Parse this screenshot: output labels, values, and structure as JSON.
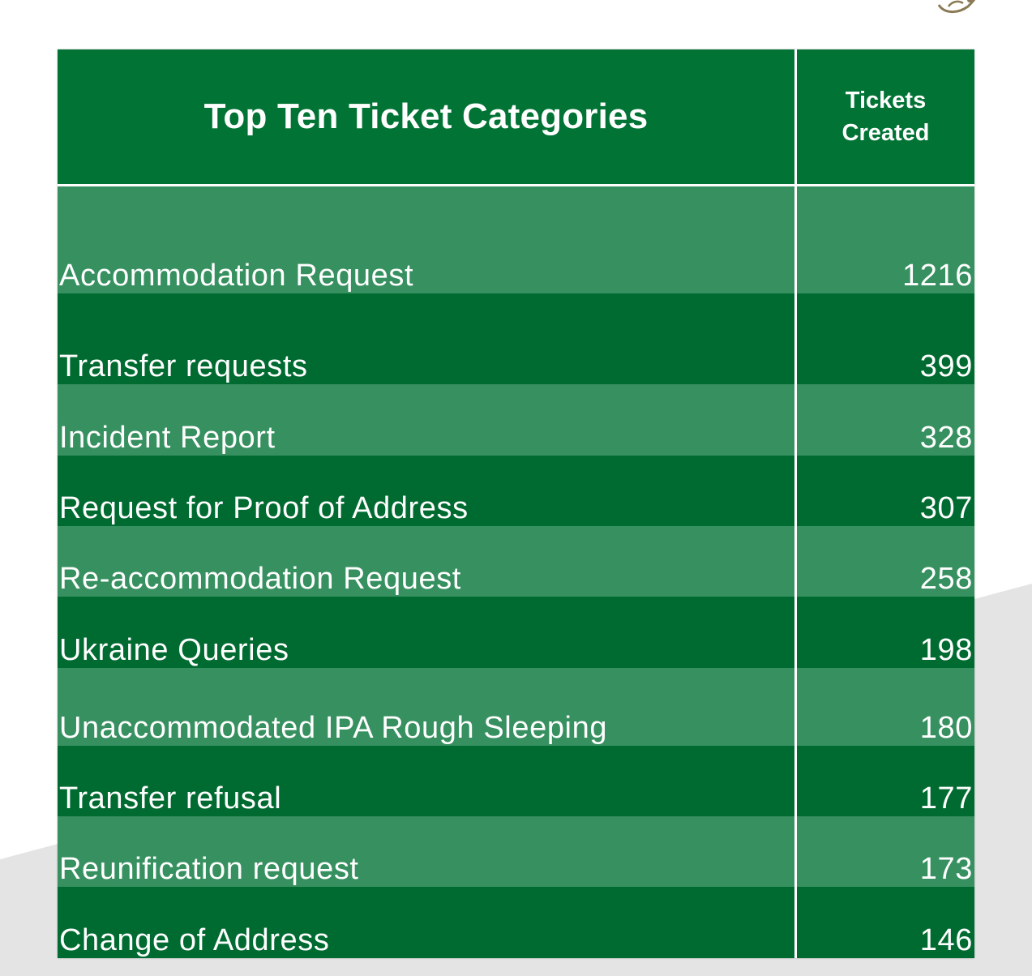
{
  "table": {
    "header": {
      "category_title": "Top Ten Ticket Categories",
      "count_title": "Tickets Created"
    },
    "rows": [
      {
        "category": "Accommodation Request",
        "tickets": "1216"
      },
      {
        "category": "Transfer requests",
        "tickets": "399"
      },
      {
        "category": "Incident Report",
        "tickets": "328"
      },
      {
        "category": "Request for Proof of Address",
        "tickets": "307"
      },
      {
        "category": "Re-accommodation Request",
        "tickets": "258"
      },
      {
        "category": "Ukraine Queries",
        "tickets": "198"
      },
      {
        "category": "Unaccommodated IPA Rough Sleeping",
        "tickets": "180"
      },
      {
        "category": "Transfer refusal",
        "tickets": "177"
      },
      {
        "category": "Reunification request",
        "tickets": "173"
      },
      {
        "category": "Change of Address",
        "tickets": "146"
      }
    ]
  },
  "colors": {
    "header_green": "#017335",
    "row_light_green": "#36905f",
    "row_dark_green": "#006b31"
  },
  "icons": {
    "corner_logo": "logo-icon"
  }
}
